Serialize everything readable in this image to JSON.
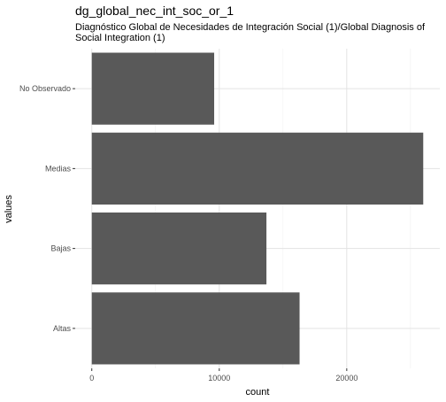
{
  "chart_data": {
    "type": "bar",
    "orientation": "horizontal",
    "title": "dg_global_nec_int_soc_or_1",
    "subtitle": "Diagnóstico Global de Necesidades de Integración Social (1)/Global Diagnosis of Social Integration (1)",
    "xlabel": "count",
    "ylabel": "values",
    "categories": [
      "Altas",
      "Bajas",
      "Medias",
      "No Observado"
    ],
    "values": [
      16300,
      13700,
      26000,
      9600
    ],
    "xlim": [
      -1300,
      27300
    ],
    "xticks": [
      0,
      10000,
      20000
    ],
    "xtick_labels": [
      "0",
      "10000",
      "20000"
    ],
    "grid": true,
    "bar_color": "#595959"
  }
}
